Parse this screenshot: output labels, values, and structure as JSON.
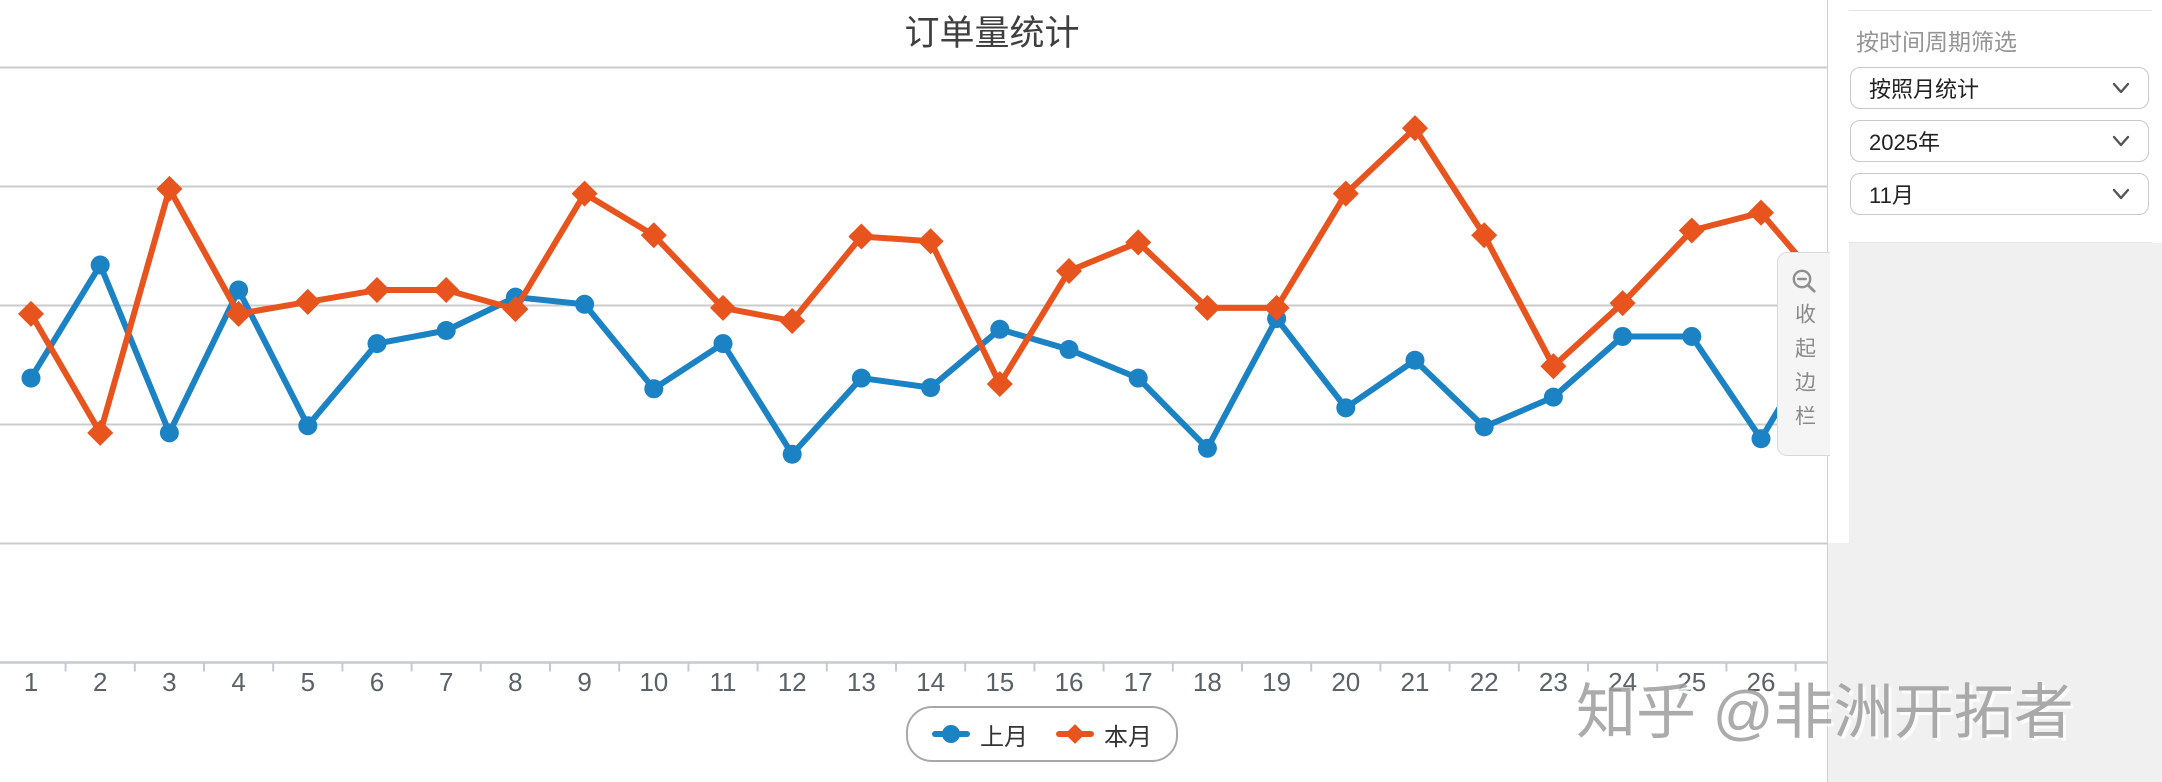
{
  "page_title": "订单量统计",
  "chart_data": {
    "type": "line",
    "title": "订单量统计",
    "categories": [
      "1",
      "2",
      "3",
      "4",
      "5",
      "6",
      "7",
      "8",
      "9",
      "10",
      "11",
      "12",
      "13",
      "14",
      "15",
      "16",
      "17",
      "18",
      "19",
      "20",
      "21",
      "22",
      "23",
      "24",
      "25",
      "26"
    ],
    "series": [
      {
        "name": "上月",
        "color": "#1b82c4",
        "marker": "circle",
        "values": [
          2.39,
          3.34,
          1.93,
          3.13,
          1.99,
          2.68,
          2.79,
          3.07,
          3.01,
          2.3,
          2.68,
          1.75,
          2.39,
          2.31,
          2.8,
          2.63,
          2.39,
          1.8,
          2.89,
          2.14,
          2.54,
          1.98,
          2.23,
          2.74,
          2.74,
          1.88
        ],
        "offscreen_next_value": 2.85
      },
      {
        "name": "本月",
        "color": "#e8541e",
        "marker": "diamond",
        "values": [
          2.93,
          1.93,
          3.98,
          2.93,
          3.03,
          3.13,
          3.13,
          2.97,
          3.94,
          3.59,
          2.98,
          2.87,
          3.58,
          3.54,
          2.34,
          3.29,
          3.53,
          2.98,
          2.98,
          3.94,
          4.49,
          3.59,
          2.49,
          3.02,
          3.63,
          3.78
        ],
        "offscreen_next_value": 3.1
      }
    ],
    "xlabel": "",
    "ylabel": "",
    "ylim": [
      0,
      5.57
    ],
    "y_gridline_values": [
      1,
      2,
      3,
      4,
      5
    ],
    "y_axis_labels_visible": false,
    "grid": true,
    "legend_position": "bottom-center",
    "grid_color": "#cbcbcb",
    "axis_color": "#c3cad2",
    "label_color": "#5b6167"
  },
  "sidebar": {
    "filter_label": "按时间周期筛选",
    "selects": [
      {
        "value": "按照月统计"
      },
      {
        "value": "2025年"
      },
      {
        "value": "11月"
      }
    ],
    "collapse_tab": {
      "icon": "zoom-out-icon",
      "label": "收起边栏"
    }
  },
  "watermark": {
    "text": "知乎 @非洲开拓者"
  }
}
